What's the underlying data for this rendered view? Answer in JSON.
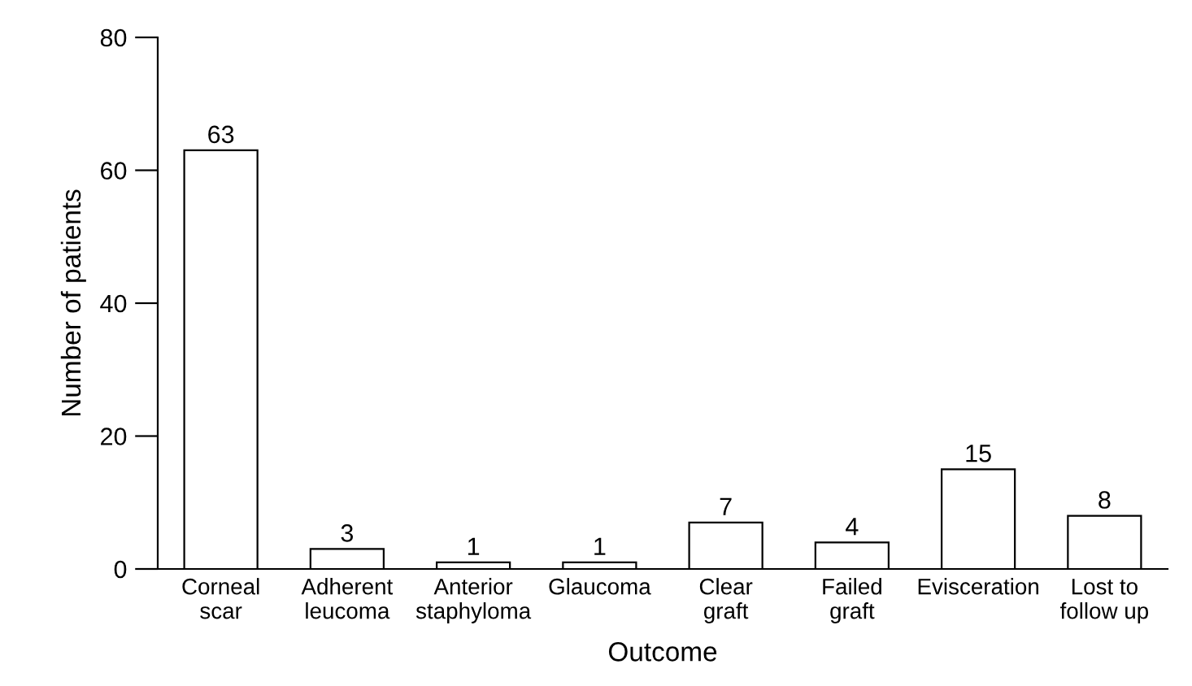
{
  "chart_data": {
    "type": "bar",
    "xlabel": "Outcome",
    "ylabel": "Number of patients",
    "categories": [
      "Corneal\nscar",
      "Adherent\nleucoma",
      "Anterior\nstaphyloma",
      "Glaucoma",
      "Clear\ngraft",
      "Failed\ngraft",
      "Evisceration",
      "Lost to\nfollow up"
    ],
    "values": [
      63,
      3,
      1,
      1,
      7,
      4,
      15,
      8
    ],
    "color": "#ffffff",
    "ylim": [
      0,
      80
    ],
    "yticks": [
      0,
      20,
      40,
      60,
      80
    ],
    "grid": false,
    "data_labels": true
  }
}
